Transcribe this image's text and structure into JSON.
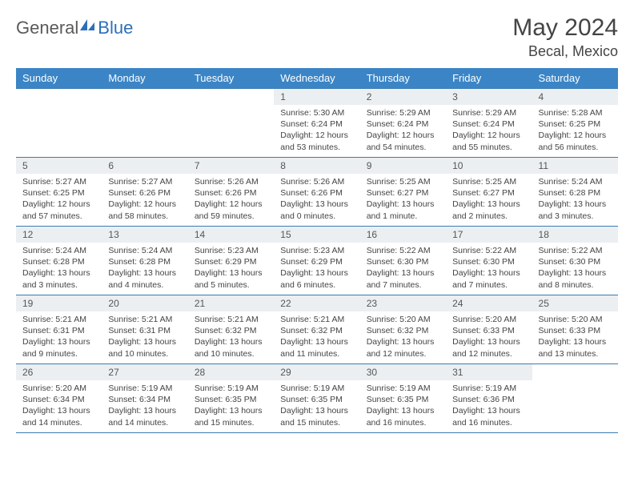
{
  "logo": {
    "textA": "General",
    "textB": "Blue"
  },
  "title": "May 2024",
  "location": "Becal, Mexico",
  "colors": {
    "header_bg": "#3b85c6",
    "header_text": "#ffffff",
    "row_border": "#3b7bb3",
    "daynum_bg": "#eceff2",
    "body_text": "#444444",
    "logo_gray": "#5a5a5a",
    "logo_blue": "#2c6fbb",
    "page_bg": "#ffffff"
  },
  "dayNames": [
    "Sunday",
    "Monday",
    "Tuesday",
    "Wednesday",
    "Thursday",
    "Friday",
    "Saturday"
  ],
  "weeks": [
    [
      null,
      null,
      null,
      {
        "d": "1",
        "sr": "5:30 AM",
        "ss": "6:24 PM",
        "dl": "12 hours and 53 minutes."
      },
      {
        "d": "2",
        "sr": "5:29 AM",
        "ss": "6:24 PM",
        "dl": "12 hours and 54 minutes."
      },
      {
        "d": "3",
        "sr": "5:29 AM",
        "ss": "6:24 PM",
        "dl": "12 hours and 55 minutes."
      },
      {
        "d": "4",
        "sr": "5:28 AM",
        "ss": "6:25 PM",
        "dl": "12 hours and 56 minutes."
      }
    ],
    [
      {
        "d": "5",
        "sr": "5:27 AM",
        "ss": "6:25 PM",
        "dl": "12 hours and 57 minutes."
      },
      {
        "d": "6",
        "sr": "5:27 AM",
        "ss": "6:26 PM",
        "dl": "12 hours and 58 minutes."
      },
      {
        "d": "7",
        "sr": "5:26 AM",
        "ss": "6:26 PM",
        "dl": "12 hours and 59 minutes."
      },
      {
        "d": "8",
        "sr": "5:26 AM",
        "ss": "6:26 PM",
        "dl": "13 hours and 0 minutes."
      },
      {
        "d": "9",
        "sr": "5:25 AM",
        "ss": "6:27 PM",
        "dl": "13 hours and 1 minute."
      },
      {
        "d": "10",
        "sr": "5:25 AM",
        "ss": "6:27 PM",
        "dl": "13 hours and 2 minutes."
      },
      {
        "d": "11",
        "sr": "5:24 AM",
        "ss": "6:28 PM",
        "dl": "13 hours and 3 minutes."
      }
    ],
    [
      {
        "d": "12",
        "sr": "5:24 AM",
        "ss": "6:28 PM",
        "dl": "13 hours and 3 minutes."
      },
      {
        "d": "13",
        "sr": "5:24 AM",
        "ss": "6:28 PM",
        "dl": "13 hours and 4 minutes."
      },
      {
        "d": "14",
        "sr": "5:23 AM",
        "ss": "6:29 PM",
        "dl": "13 hours and 5 minutes."
      },
      {
        "d": "15",
        "sr": "5:23 AM",
        "ss": "6:29 PM",
        "dl": "13 hours and 6 minutes."
      },
      {
        "d": "16",
        "sr": "5:22 AM",
        "ss": "6:30 PM",
        "dl": "13 hours and 7 minutes."
      },
      {
        "d": "17",
        "sr": "5:22 AM",
        "ss": "6:30 PM",
        "dl": "13 hours and 7 minutes."
      },
      {
        "d": "18",
        "sr": "5:22 AM",
        "ss": "6:30 PM",
        "dl": "13 hours and 8 minutes."
      }
    ],
    [
      {
        "d": "19",
        "sr": "5:21 AM",
        "ss": "6:31 PM",
        "dl": "13 hours and 9 minutes."
      },
      {
        "d": "20",
        "sr": "5:21 AM",
        "ss": "6:31 PM",
        "dl": "13 hours and 10 minutes."
      },
      {
        "d": "21",
        "sr": "5:21 AM",
        "ss": "6:32 PM",
        "dl": "13 hours and 10 minutes."
      },
      {
        "d": "22",
        "sr": "5:21 AM",
        "ss": "6:32 PM",
        "dl": "13 hours and 11 minutes."
      },
      {
        "d": "23",
        "sr": "5:20 AM",
        "ss": "6:32 PM",
        "dl": "13 hours and 12 minutes."
      },
      {
        "d": "24",
        "sr": "5:20 AM",
        "ss": "6:33 PM",
        "dl": "13 hours and 12 minutes."
      },
      {
        "d": "25",
        "sr": "5:20 AM",
        "ss": "6:33 PM",
        "dl": "13 hours and 13 minutes."
      }
    ],
    [
      {
        "d": "26",
        "sr": "5:20 AM",
        "ss": "6:34 PM",
        "dl": "13 hours and 14 minutes."
      },
      {
        "d": "27",
        "sr": "5:19 AM",
        "ss": "6:34 PM",
        "dl": "13 hours and 14 minutes."
      },
      {
        "d": "28",
        "sr": "5:19 AM",
        "ss": "6:35 PM",
        "dl": "13 hours and 15 minutes."
      },
      {
        "d": "29",
        "sr": "5:19 AM",
        "ss": "6:35 PM",
        "dl": "13 hours and 15 minutes."
      },
      {
        "d": "30",
        "sr": "5:19 AM",
        "ss": "6:35 PM",
        "dl": "13 hours and 16 minutes."
      },
      {
        "d": "31",
        "sr": "5:19 AM",
        "ss": "6:36 PM",
        "dl": "13 hours and 16 minutes."
      },
      null
    ]
  ],
  "labels": {
    "sunrise": "Sunrise: ",
    "sunset": "Sunset: ",
    "daylight": "Daylight: "
  }
}
